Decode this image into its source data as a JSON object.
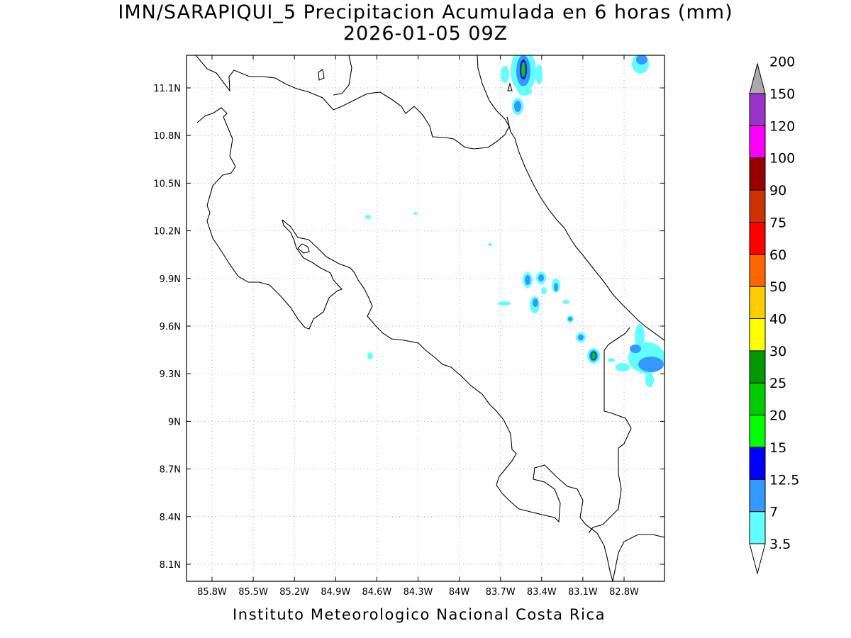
{
  "title": {
    "line1": "IMN/SARAPIQUI_5 Precipitacion Acumulada en 6 horas (mm)",
    "line2": "2026-01-05 09Z"
  },
  "footer": "Instituto Meteorologico Nacional Costa Rica",
  "axes": {
    "lat_ticks": [
      "11.1N",
      "10.8N",
      "10.5N",
      "10.2N",
      "9.9N",
      "9.6N",
      "9.3N",
      "9N",
      "8.7N",
      "8.4N",
      "8.1N"
    ],
    "lon_ticks": [
      "85.8W",
      "85.5W",
      "85.2W",
      "84.9W",
      "84.6W",
      "84.3W",
      "84W",
      "83.7W",
      "83.4W",
      "83.1W",
      "82.8W"
    ]
  },
  "colorbar": {
    "labels": [
      "3.5",
      "7",
      "12.5",
      "15",
      "20",
      "25",
      "30",
      "40",
      "50",
      "60",
      "75",
      "90",
      "100",
      "120",
      "150",
      "200"
    ],
    "colors": [
      "#62ffff",
      "#3399ff",
      "#0000ff",
      "#00ff00",
      "#00cc00",
      "#009900",
      "#ffff00",
      "#ffcc00",
      "#ff6600",
      "#ff0000",
      "#cc3300",
      "#990000",
      "#ff00ff",
      "#9933cc",
      "#f5f5f5",
      "#aaaaaa"
    ]
  }
}
